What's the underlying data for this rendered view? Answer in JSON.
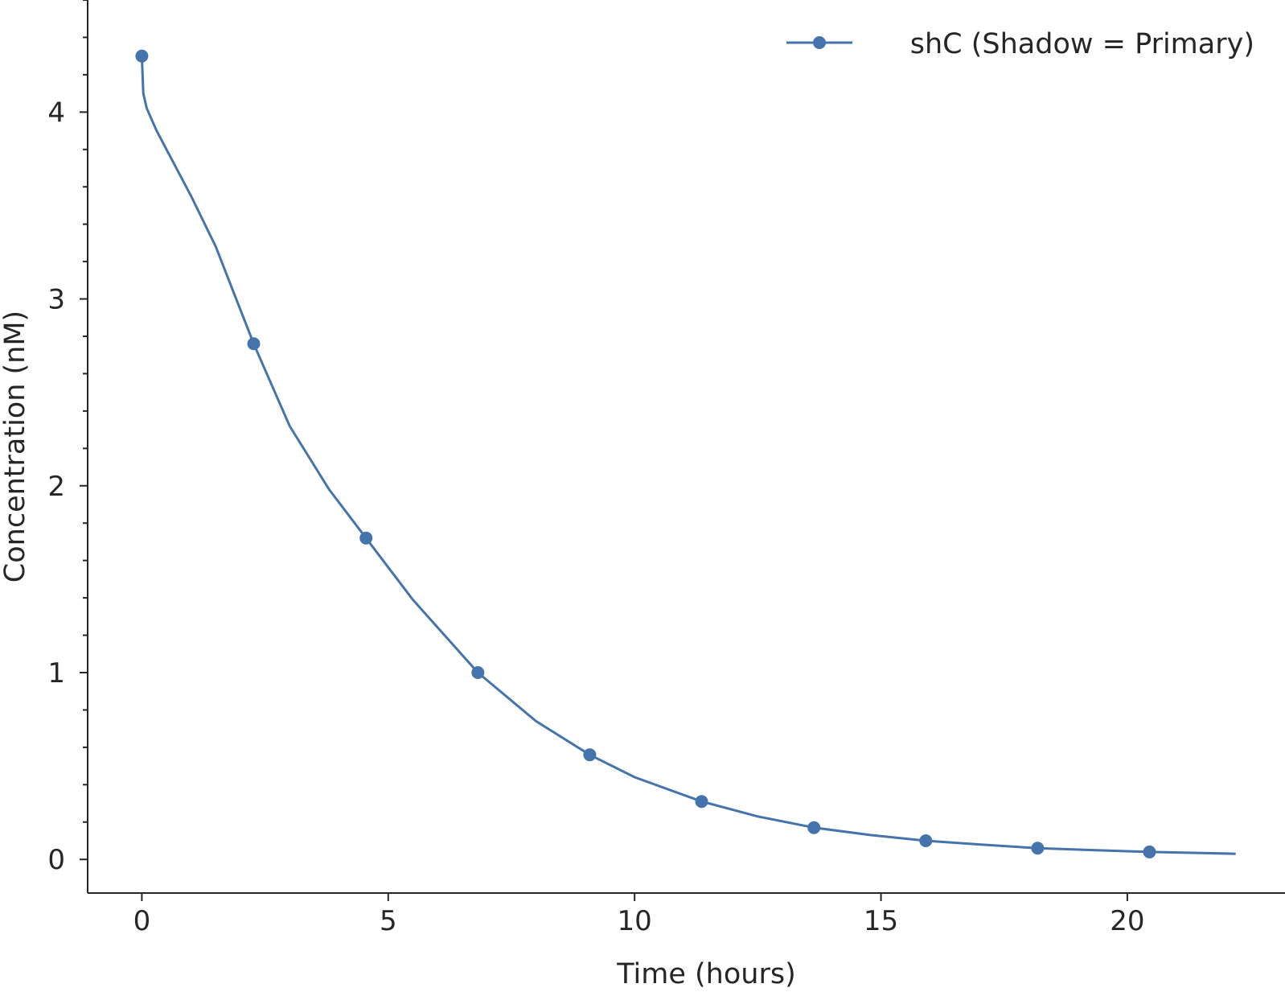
{
  "chart_data": {
    "type": "line",
    "title": "",
    "xlabel": "Time (hours)",
    "ylabel": "Concentration (nM)",
    "xlim": [
      -1.1,
      23.2
    ],
    "ylim": [
      -0.18,
      4.6
    ],
    "x_ticks": [
      0,
      5,
      10,
      15,
      20
    ],
    "x_tick_labels": [
      "0",
      "5",
      "10",
      "15",
      "20"
    ],
    "y_ticks": [
      0,
      1,
      2,
      3,
      4
    ],
    "y_tick_labels": [
      "0",
      "1",
      "2",
      "3",
      "4"
    ],
    "y_minor_step": 0.2,
    "grid": false,
    "legend_position": "top-right",
    "series": [
      {
        "name": "shC (Shadow =  Primary)",
        "color": "#4474ab",
        "marker": "circle",
        "markers": {
          "x": [
            0,
            2.27,
            4.55,
            6.82,
            9.09,
            11.36,
            13.64,
            15.91,
            18.18,
            20.45
          ],
          "y": [
            4.3,
            2.76,
            1.72,
            1.0,
            0.56,
            0.31,
            0.17,
            0.1,
            0.06,
            0.04
          ]
        },
        "line": {
          "x": [
            0,
            0.03,
            0.1,
            0.3,
            0.6,
            1.0,
            1.5,
            2.27,
            3.0,
            3.8,
            4.55,
            5.5,
            6.82,
            8.0,
            9.09,
            10.0,
            11.36,
            12.5,
            13.64,
            14.8,
            15.91,
            17.0,
            18.18,
            19.3,
            20.45,
            21.4,
            22.2
          ],
          "y": [
            4.3,
            4.1,
            4.02,
            3.9,
            3.75,
            3.55,
            3.28,
            2.76,
            2.32,
            1.98,
            1.72,
            1.39,
            1.0,
            0.74,
            0.56,
            0.44,
            0.31,
            0.23,
            0.17,
            0.13,
            0.1,
            0.08,
            0.06,
            0.05,
            0.04,
            0.035,
            0.03
          ]
        }
      }
    ]
  }
}
